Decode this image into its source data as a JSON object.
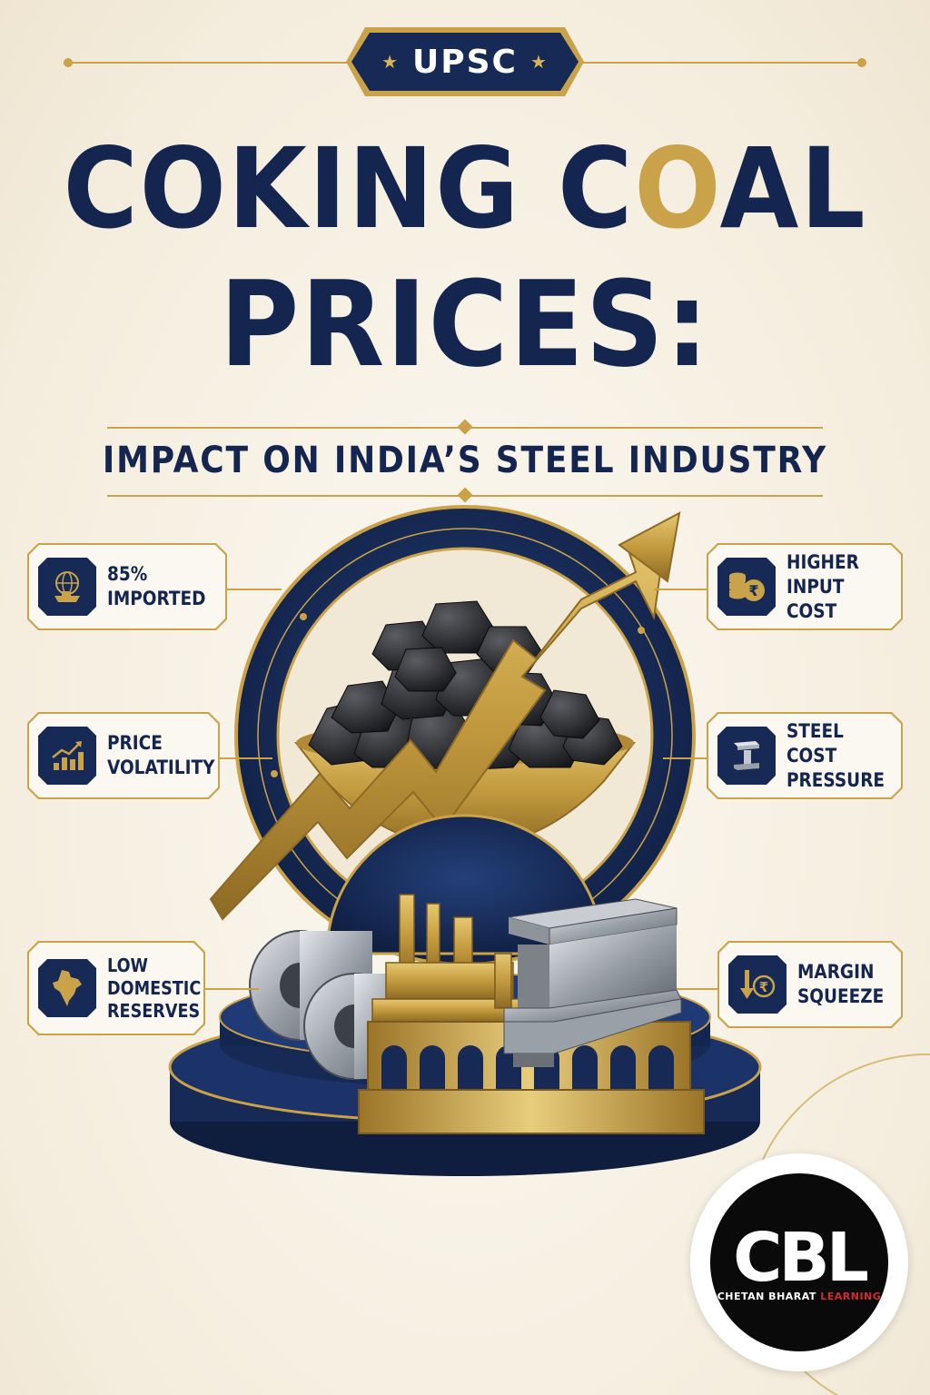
{
  "header": {
    "badge_label": "UPSC",
    "badge_star": "★",
    "title_line1_pre": "COKING C",
    "title_line1_flame": "O",
    "title_line1_post": "AL",
    "title_line2": "PRICES:",
    "subtitle": "IMPACT ON INDIA’S STEEL INDUSTRY"
  },
  "facts_left": [
    {
      "icon": "globe-ship-icon",
      "text": "85%\nIMPORTED"
    },
    {
      "icon": "bar-chart-up-icon",
      "text": "PRICE\nVOLATILITY"
    },
    {
      "icon": "india-map-icon",
      "text": "LOW\nDOMESTIC\nRESERVES"
    }
  ],
  "facts_right": [
    {
      "icon": "coins-rupee-icon",
      "text": "HIGHER\nINPUT COST"
    },
    {
      "icon": "steel-beam-icon",
      "text": "STEEL COST\nPRESSURE"
    },
    {
      "icon": "down-arrow-rupee-icon",
      "text": "MARGIN\nSQUEEZE"
    }
  ],
  "logo": {
    "mark": "CBL",
    "name_white": "CHETAN BHARAT ",
    "name_red": "LEARNING"
  },
  "colors": {
    "navy": "#162a55",
    "gold": "#c9a24a",
    "cream": "#f7f1e5"
  }
}
